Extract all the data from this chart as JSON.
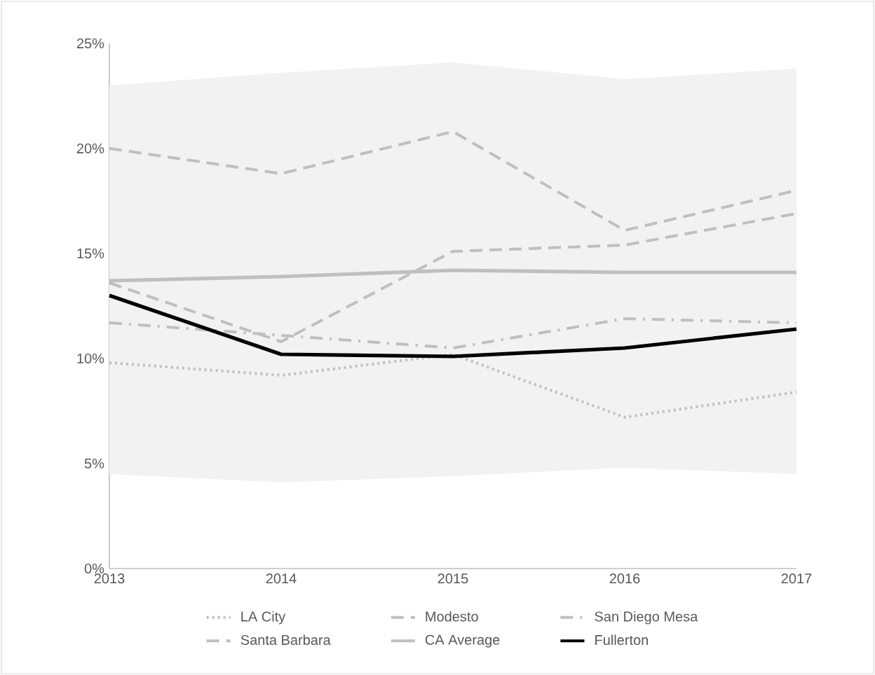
{
  "chart_data": {
    "type": "line",
    "x": [
      2013,
      2014,
      2015,
      2016,
      2017
    ],
    "xlim": [
      2013,
      2017
    ],
    "xticks": [
      2013,
      2014,
      2015,
      2016,
      2017
    ],
    "ylim": [
      0,
      25
    ],
    "yticks": [
      {
        "value": 0,
        "label": "0%"
      },
      {
        "value": 5,
        "label": "5%"
      },
      {
        "value": 10,
        "label": "10%"
      },
      {
        "value": 15,
        "label": "15%"
      },
      {
        "value": 20,
        "label": "20%"
      },
      {
        "value": 25,
        "label": "25%"
      }
    ],
    "legend": "bottom",
    "grid": false,
    "series": [
      {
        "name": "LA City",
        "color": "#bfbfbf",
        "line_style": "dotted",
        "values": [
          9.8,
          9.2,
          10.2,
          7.2,
          8.4
        ]
      },
      {
        "name": "Modesto",
        "color": "#bfbfbf",
        "line_style": "dashed",
        "values": [
          20.0,
          18.8,
          20.8,
          16.1,
          18.0
        ]
      },
      {
        "name": "San Diego Mesa",
        "color": "#bfbfbf",
        "line_style": "dashdot",
        "values": [
          11.7,
          11.1,
          10.5,
          11.9,
          11.7
        ]
      },
      {
        "name": "Santa Barbara",
        "color": "#bfbfbf",
        "line_style": "dashed",
        "values": [
          13.6,
          10.8,
          15.1,
          15.4,
          16.9
        ]
      },
      {
        "name": "CA Average",
        "color": "#bfbfbf",
        "line_style": "solid",
        "values": [
          13.7,
          13.9,
          14.2,
          14.1,
          14.1
        ],
        "lower": [
          4.5,
          4.1,
          4.4,
          4.8,
          4.5
        ],
        "upper": [
          23.0,
          23.6,
          24.1,
          23.3,
          23.8
        ]
      },
      {
        "name": "Fullerton",
        "color": "#000000",
        "line_style": "solid",
        "values": [
          13.0,
          10.2,
          10.1,
          10.5,
          11.4
        ]
      }
    ]
  }
}
